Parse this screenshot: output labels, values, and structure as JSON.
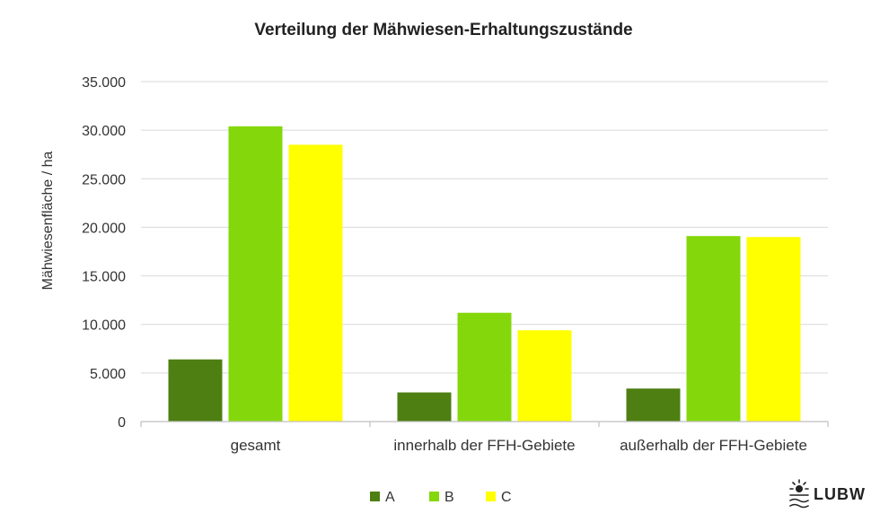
{
  "chart_data": {
    "type": "bar",
    "title": "Verteilung der Mähwiesen-Erhaltungszustände",
    "xlabel": "",
    "ylabel": "Mähwiesenfläche / ha",
    "categories": [
      "gesamt",
      "innerhalb der FFH-Gebiete",
      "außerhalb der FFH-Gebiete"
    ],
    "series": [
      {
        "name": "A",
        "color": "#4e7f12",
        "values": [
          6400,
          3000,
          3400
        ]
      },
      {
        "name": "B",
        "color": "#84d70a",
        "values": [
          30400,
          11200,
          19100
        ]
      },
      {
        "name": "C",
        "color": "#ffff00",
        "values": [
          28500,
          9400,
          19000
        ]
      }
    ],
    "ylim": [
      0,
      35000
    ],
    "yticks": [
      0,
      5000,
      10000,
      15000,
      20000,
      25000,
      30000,
      35000
    ],
    "ytick_labels": [
      "0",
      "5.000",
      "10.000",
      "15.000",
      "20.000",
      "25.000",
      "30.000",
      "35.000"
    ],
    "grid": true,
    "legend_position": "bottom-center"
  },
  "logo": {
    "text": "LUBW",
    "icon": "lubw-sun-water-icon"
  }
}
